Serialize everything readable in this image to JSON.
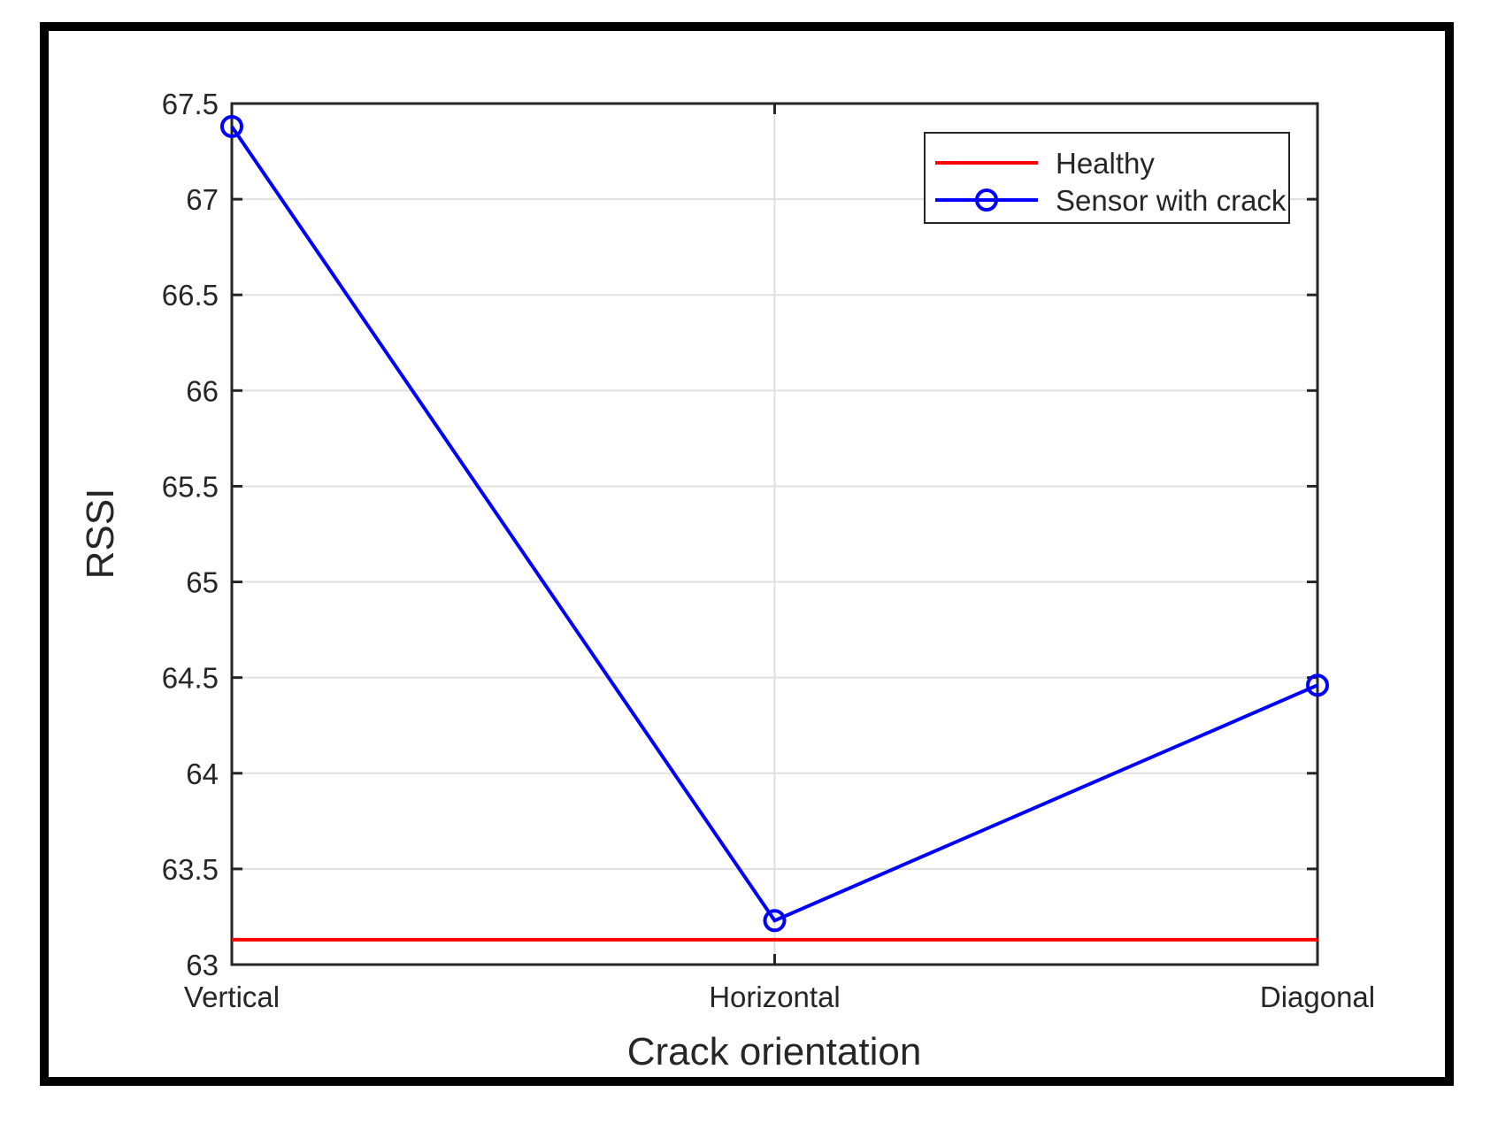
{
  "colors": {
    "background": "#ffffff",
    "figure_frame": "#000000",
    "axis": "#262626",
    "grid": "#e0e0e0",
    "text": "#262626",
    "healthy_line": "#ff0000",
    "sensor_line": "#0000ff"
  },
  "chart_data": {
    "type": "line",
    "title": "",
    "xlabel": "Crack orientation",
    "ylabel": "RSSI",
    "categories": [
      "Vertical",
      "Horizontal",
      "Diagonal"
    ],
    "series": [
      {
        "name": "Healthy",
        "style": "hline",
        "value": 63.13,
        "color": "#ff0000"
      },
      {
        "name": "Sensor with crack",
        "style": "line-circle-markers",
        "values": [
          67.38,
          63.23,
          64.46
        ],
        "color": "#0000ff"
      }
    ],
    "ylim": [
      63,
      67.5
    ],
    "yticks": [
      63,
      63.5,
      64,
      64.5,
      65,
      65.5,
      66,
      66.5,
      67,
      67.5
    ],
    "grid": true,
    "legend": {
      "position": "top-right",
      "entries": [
        "Healthy",
        "Sensor with crack"
      ]
    }
  }
}
